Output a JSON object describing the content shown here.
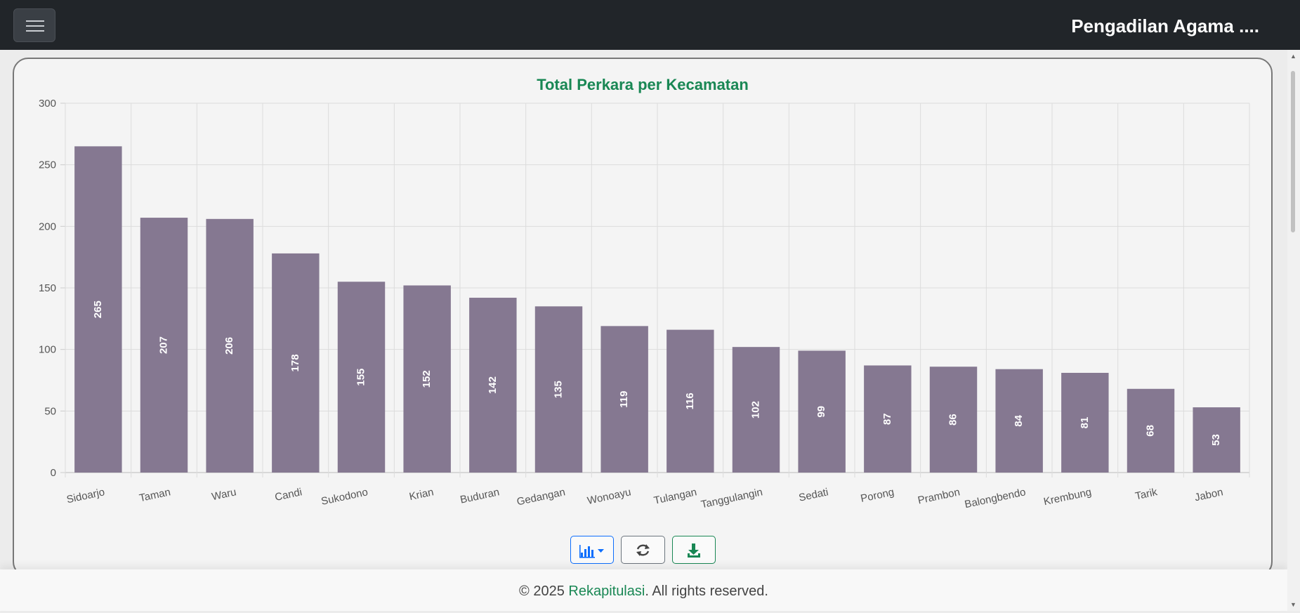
{
  "navbar": {
    "brand": "Pengadilan Agama ...."
  },
  "chart_data": {
    "type": "bar",
    "title": "Total Perkara per Kecamatan",
    "xlabel": "",
    "ylabel": "",
    "categories": [
      "Sidoarjo",
      "Taman",
      "Waru",
      "Candi",
      "Sukodono",
      "Krian",
      "Buduran",
      "Gedangan",
      "Wonoayu",
      "Tulangan",
      "Tanggulangin",
      "Sedati",
      "Porong",
      "Prambon",
      "Balongbendo",
      "Krembung",
      "Tarik",
      "Jabon"
    ],
    "values": [
      265,
      207,
      206,
      178,
      155,
      152,
      142,
      135,
      119,
      116,
      102,
      99,
      87,
      86,
      84,
      81,
      68,
      53
    ],
    "ylim": [
      0,
      300
    ],
    "yticks": [
      0,
      50,
      100,
      150,
      200,
      250,
      300
    ],
    "bar_color": "#857891",
    "title_color": "#198754",
    "grid": true,
    "legend": "none"
  },
  "toolbar": {
    "chart_type_icon": "bar-chart-icon",
    "refresh_icon": "refresh-icon",
    "download_icon": "download-icon"
  },
  "footer": {
    "copyright": "© 2025 ",
    "link_text": "Rekapitulasi",
    "rights": ". All rights reserved."
  }
}
